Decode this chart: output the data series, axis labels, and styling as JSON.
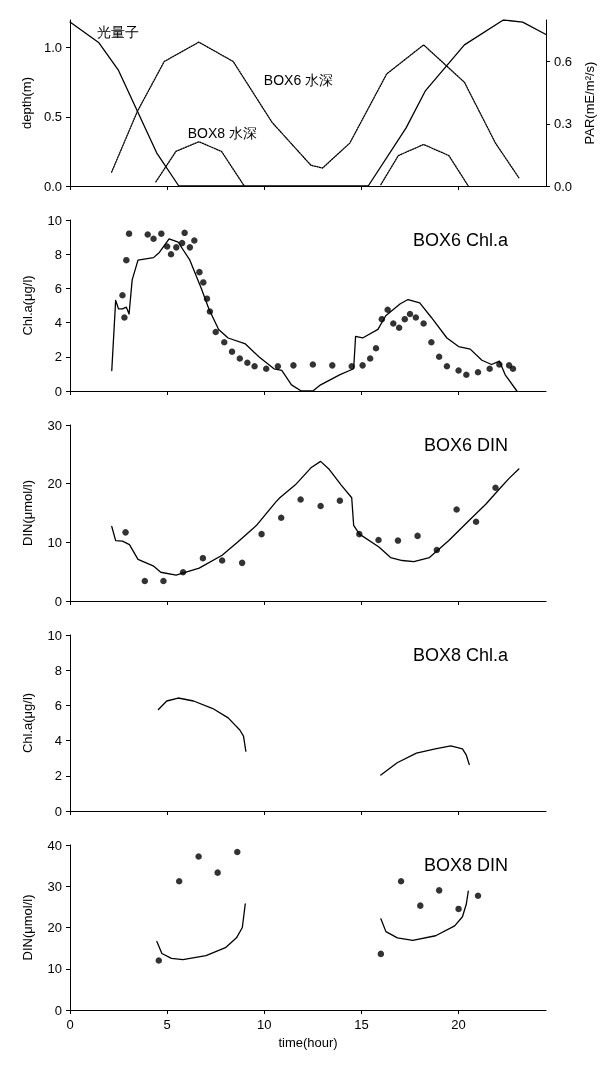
{
  "chart_data": [
    {
      "type": "line",
      "xlim": [
        0,
        24.5
      ],
      "xticks": [
        0,
        5,
        10,
        15,
        20
      ],
      "ylim": [
        0,
        1.2
      ],
      "yticks": [
        {
          "value": 0,
          "label": "0.0"
        },
        {
          "value": 0.5,
          "label": "0.5"
        },
        {
          "value": 1,
          "label": "1.0"
        }
      ],
      "y2lim": [
        0,
        0.8
      ],
      "y2ticks": [
        {
          "value": 0,
          "label": "0.0"
        },
        {
          "value": 0.3,
          "label": "0.3"
        },
        {
          "value": 0.6,
          "label": "0.6"
        }
      ],
      "ylabel": "depth(m)",
      "y2label": "PAR(mE/m²/s)",
      "tick_labels": "y",
      "marker": "none",
      "series": [
        {
          "type": "line",
          "axis": "y2",
          "color": "#000000",
          "line_style": "solid",
          "x": [
            0,
            1.49,
            2.48,
            3.47,
            4.46,
            5.6,
            15.35,
            17.3,
            18.3,
            20.3,
            22.3,
            23.3,
            24.5
          ],
          "values": [
            0.79,
            0.69,
            0.56,
            0.36,
            0.16,
            0,
            0,
            0.28,
            0.46,
            0.68,
            0.8,
            0.79,
            0.73
          ]
        },
        {
          "type": "line",
          "color": "#000000",
          "line_style": "dotted",
          "x": [
            2.14,
            3.47,
            4.85,
            6.63,
            8.4,
            10.4,
            12.4,
            13,
            14.4,
            16.3,
            18.2,
            20.3,
            21.9,
            23.1
          ],
          "values": [
            0.1,
            0.54,
            0.9,
            1.04,
            0.9,
            0.46,
            0.15,
            0.13,
            0.31,
            0.81,
            1.02,
            0.75,
            0.31,
            0.06
          ]
        },
        {
          "type": "line",
          "color": "#000000",
          "line_style": "dotted",
          "x": [
            4.42,
            5.45,
            6.63,
            7.8,
            8.97,
            12.5,
            16,
            16.9,
            18.2,
            19.5,
            20.5
          ],
          "values": [
            0.03,
            0.25,
            0.32,
            0.25,
            0,
            null,
            0.01,
            0.22,
            0.3,
            0.22,
            0
          ]
        }
      ],
      "annotations": [
        "光量子",
        "BOX6 水深",
        "BOX8 水深"
      ]
    },
    {
      "type": "line",
      "title": "BOX6 Chl.a",
      "xlim": [
        0,
        24.5
      ],
      "xticks": [
        0,
        5,
        10,
        15,
        20
      ],
      "ylim": [
        0,
        10
      ],
      "yticks": [
        0,
        2,
        4,
        6,
        8,
        10
      ],
      "ylabel": "Chl.a(μg/l)",
      "tick_labels": "y",
      "marker": "circle",
      "series": [
        {
          "type": "line",
          "color": "#000000",
          "line_style": "solid",
          "marker": "none",
          "x": [
            2.15,
            2.35,
            2.5,
            2.7,
            2.9,
            3.04,
            3.2,
            3.5,
            4.3,
            4.6,
            5.1,
            5.57,
            6.17,
            6.76,
            7.15,
            7.65,
            8.14,
            9.03,
            9.72,
            10.5,
            10.9,
            11.4,
            11.9,
            12.5,
            12.9,
            13.9,
            14.6,
            14.7,
            15.06,
            15.85,
            16.25,
            17,
            17.4,
            18,
            18.6,
            19.4,
            20,
            20.6,
            21.2,
            21.7,
            22.1,
            22.4,
            23
          ],
          "values": [
            1.2,
            5.3,
            4.8,
            4.8,
            4.9,
            4.5,
            6.5,
            7.65,
            7.8,
            8.1,
            8.9,
            8.7,
            7.65,
            6,
            4.8,
            3.6,
            3.1,
            2.75,
            2,
            1.3,
            1.2,
            0.36,
            0,
            0,
            0.36,
            0.96,
            1.3,
            3.2,
            3.1,
            3.6,
            4.4,
            5.1,
            5.35,
            5.15,
            4.3,
            3.1,
            2.6,
            2.45,
            1.8,
            1.55,
            1.75,
            0.95,
            0
          ]
        },
        {
          "type": "scatter",
          "color": "#000000",
          "x": [
            2.7,
            2.8,
            2.9,
            3.04,
            4,
            4.3,
            4.7,
            5,
            5.2,
            5.47,
            5.77,
            5.9,
            6.17,
            6.4,
            6.66,
            6.86,
            7.05,
            7.2,
            7.5,
            7.94,
            8.34,
            8.74,
            9.13,
            9.5,
            10.1,
            10.7,
            11.5,
            12.5,
            13.5,
            14.5,
            15.06,
            15.45,
            15.75,
            16.05,
            16.35,
            16.64,
            16.94,
            17.23,
            17.5,
            17.8,
            18.2,
            18.6,
            19,
            19.4,
            20,
            20.4,
            21,
            21.6,
            22.1,
            22.6,
            22.8
          ],
          "values": [
            5.6,
            4.3,
            7.65,
            9.2,
            9.15,
            8.9,
            9.2,
            8.45,
            8,
            8.4,
            8.65,
            9.25,
            8.4,
            8.8,
            6.95,
            6.35,
            5.4,
            4.65,
            3.45,
            2.85,
            2.3,
            1.9,
            1.65,
            1.45,
            1.3,
            1.45,
            1.5,
            1.55,
            1.5,
            1.45,
            1.5,
            1.9,
            2.5,
            4.2,
            4.75,
            3.95,
            3.7,
            4.2,
            4.5,
            4.3,
            3.95,
            2.85,
            2,
            1.45,
            1.2,
            0.95,
            1.1,
            1.3,
            1.55,
            1.5,
            1.3
          ]
        }
      ]
    },
    {
      "type": "line",
      "title": "BOX6 DIN",
      "xlim": [
        0,
        24.5
      ],
      "xticks": [
        0,
        5,
        10,
        15,
        20
      ],
      "ylim": [
        0,
        30
      ],
      "yticks": [
        0,
        10,
        20,
        30
      ],
      "ylabel": "DIN(μmol/l)",
      "tick_labels": "y",
      "marker": "circle",
      "series": [
        {
          "type": "line",
          "color": "#000000",
          "line_style": "solid",
          "marker": "none",
          "x": [
            2.15,
            2.35,
            2.7,
            3.06,
            3.5,
            4.28,
            4.67,
            5.46,
            6.65,
            7.83,
            8.62,
            9.6,
            10.6,
            10.8,
            11.6,
            12.4,
            12.9,
            13.35,
            13.95,
            14.5,
            14.6,
            14.9,
            15.9,
            16.5,
            17.1,
            17.7,
            18.5,
            19.5,
            20.5,
            21.4,
            22.1,
            22.6,
            23.1
          ],
          "values": [
            12.7,
            10.3,
            10.2,
            9.6,
            7.1,
            6,
            4.9,
            4.4,
            5.6,
            7.8,
            10,
            12.9,
            16.9,
            17.6,
            19.8,
            22.7,
            23.8,
            22.4,
            19.8,
            17.6,
            12.9,
            11.4,
            9.2,
            7.4,
            6.9,
            6.7,
            7.4,
            10.3,
            13.6,
            16.5,
            19.1,
            20.9,
            22.5
          ]
        },
        {
          "type": "scatter",
          "color": "#000000",
          "x": [
            2.86,
            3.85,
            4.81,
            5.82,
            6.84,
            7.83,
            8.86,
            9.86,
            10.87,
            11.87,
            12.9,
            13.89,
            14.89,
            15.88,
            16.88,
            17.89,
            18.88,
            19.9,
            20.9,
            21.9
          ],
          "values": [
            11.7,
            3.4,
            3.4,
            4.9,
            7.3,
            6.9,
            6.5,
            11.4,
            14.2,
            17.3,
            16.2,
            17.1,
            11.4,
            10.4,
            10.3,
            11.1,
            8.7,
            15.6,
            13.5,
            19.3
          ]
        }
      ]
    },
    {
      "type": "line",
      "title": "BOX8 Chl.a",
      "xlim": [
        0,
        24.5
      ],
      "xticks": [
        0,
        5,
        10,
        15,
        20
      ],
      "ylim": [
        0,
        10
      ],
      "yticks": [
        0,
        2,
        4,
        6,
        8,
        10
      ],
      "ylabel": "Chl.a(μg/l)",
      "tick_labels": "y",
      "marker": "none",
      "series": [
        {
          "type": "line",
          "color": "#000000",
          "line_style": "solid",
          "x": [
            4.55,
            4.98,
            5.57,
            6.36,
            7.35,
            8.14,
            8.74,
            8.93,
            9.05,
            12.5,
            16,
            16.84,
            17.83,
            18.8,
            19.6,
            20.2,
            20.4,
            20.55
          ],
          "values": [
            5.77,
            6.25,
            6.42,
            6.25,
            5.82,
            5.29,
            4.6,
            4.25,
            3.4,
            null,
            2.04,
            2.74,
            3.29,
            3.53,
            3.7,
            3.53,
            3.17,
            2.64
          ]
        }
      ]
    },
    {
      "type": "line",
      "title": "BOX8 DIN",
      "xlabel": "time(hour)",
      "xlim": [
        0,
        24.5
      ],
      "xticks": [
        0,
        5,
        10,
        15,
        20
      ],
      "ylim": [
        0,
        40
      ],
      "yticks": [
        0,
        10,
        20,
        30,
        40
      ],
      "ylabel": "DIN(μmol/l)",
      "marker": "circle",
      "series": [
        {
          "type": "line",
          "color": "#000000",
          "line_style": "solid",
          "marker": "none",
          "x": [
            4.47,
            4.73,
            5.22,
            5.81,
            7,
            8,
            8.57,
            8.87,
            9.02,
            12.5,
            16,
            16.26,
            16.85,
            17.64,
            18.82,
            19.8,
            20.2,
            20.4,
            20.5
          ],
          "values": [
            16.6,
            13.7,
            12.5,
            12.2,
            13.2,
            15.1,
            17.5,
            20,
            25.7,
            null,
            22.1,
            19,
            17.5,
            16.9,
            18,
            20.4,
            22.6,
            25.7,
            28.8
          ]
        },
        {
          "type": "scatter",
          "color": "#000000",
          "x": [
            4.57,
            5.62,
            6.62,
            7.6,
            8.61,
            16,
            17.04,
            18.03,
            19,
            20,
            21
          ],
          "values": [
            12,
            31.2,
            37.2,
            33.3,
            38.3,
            13.6,
            31.2,
            25.3,
            29,
            24.5,
            27.7
          ]
        }
      ]
    }
  ]
}
